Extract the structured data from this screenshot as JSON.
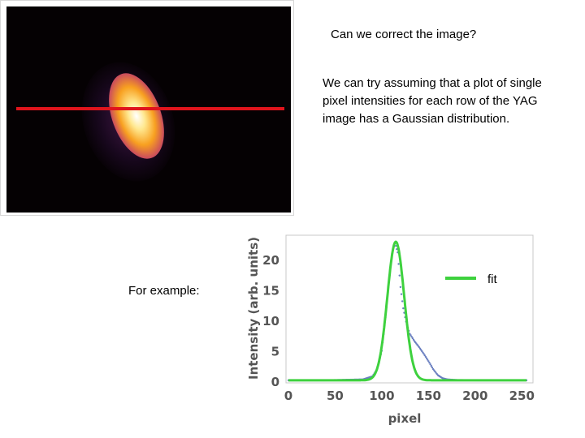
{
  "slide": {
    "question": "Can we correct the image?",
    "assumption": "We can try assuming that a plot of single pixel intensities for each row of the YAG image has a Gaussian distribution.",
    "example_label": "For example:"
  },
  "colors": {
    "line_marker": "#e0141c",
    "fit": "#3ed13e",
    "data": "#6a7fc0"
  },
  "chart_data": {
    "type": "line",
    "xlabel": "pixel",
    "ylabel": "Intensity (arb. units)",
    "xlim": [
      0,
      255
    ],
    "ylim": [
      0,
      23.5
    ],
    "xticks": [
      0,
      50,
      100,
      150,
      200,
      250
    ],
    "yticks": [
      0,
      5,
      10,
      15,
      20
    ],
    "legend": {
      "position": "right",
      "entries": [
        {
          "label": "fit",
          "color": "#3ed13e"
        }
      ]
    },
    "series": [
      {
        "name": "fit",
        "color": "#3ed13e",
        "model": "gaussian",
        "amplitude": 22.8,
        "center": 115,
        "sigma": 9,
        "offset": 0.15
      },
      {
        "color": "#6a7fc0",
        "x": [
          0,
          40,
          80,
          90,
          95,
          100,
          104,
          108,
          111,
          114,
          117,
          120,
          123,
          126,
          130,
          135,
          140,
          145,
          150,
          155,
          160,
          165,
          170,
          180,
          200,
          230,
          255
        ],
        "y": [
          0.15,
          0.15,
          0.3,
          0.8,
          2.0,
          5.0,
          10.5,
          17.0,
          21.0,
          22.8,
          21.2,
          15.5,
          12.0,
          9.8,
          7.8,
          6.6,
          5.6,
          4.5,
          3.3,
          2.0,
          1.0,
          0.5,
          0.3,
          0.2,
          0.15,
          0.15,
          0.15
        ]
      }
    ]
  }
}
